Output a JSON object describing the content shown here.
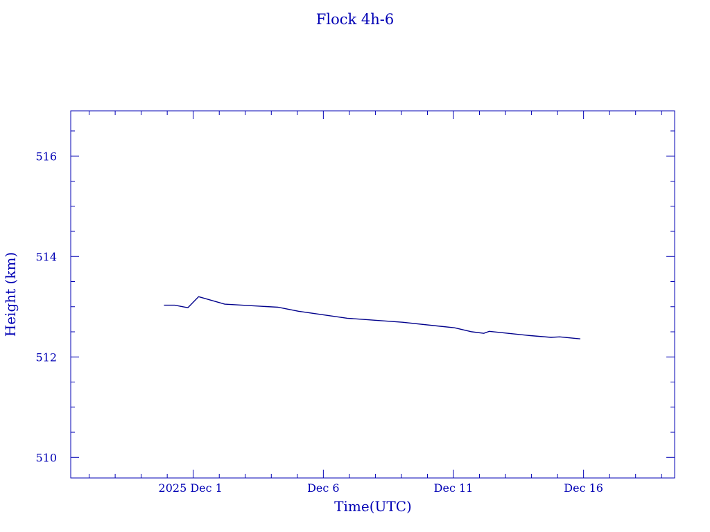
{
  "chart_data": {
    "type": "line",
    "title": "Flock 4h-6",
    "xlabel": "Time(UTC)",
    "ylabel": "Height (km)",
    "xlim": [
      "2025-11-26T07:00",
      "2025-12-19T12:00"
    ],
    "ylim": [
      509.59,
      516.9
    ],
    "x_ticks": [
      {
        "date": "2025-12-01T00:00",
        "label": "2025 Dec  1"
      },
      {
        "date": "2025-12-06T00:00",
        "label": "Dec  6"
      },
      {
        "date": "2025-12-11T00:00",
        "label": "Dec 11"
      },
      {
        "date": "2025-12-16T00:00",
        "label": "Dec 16"
      }
    ],
    "y_ticks": [
      510,
      512,
      514,
      516
    ],
    "y_minor_step": 0.5,
    "x_minor_step_days": 1,
    "grid": false,
    "colors": {
      "axes": "#0000b4",
      "line": "#00008b"
    },
    "series": [
      {
        "x": [
          "2025-11-29T21:00",
          "2025-11-30T07:00",
          "2025-11-30T19:00",
          "2025-12-01T05:00",
          "2025-12-02T05:00",
          "2025-12-04T06:00",
          "2025-12-05T01:00",
          "2025-12-06T22:00",
          "2025-12-09T01:00",
          "2025-12-11T01:00",
          "2025-12-11T17:00",
          "2025-12-12T04:00",
          "2025-12-12T09:00",
          "2025-12-13T20:00",
          "2025-12-14T18:00",
          "2025-12-15T02:00",
          "2025-12-15T21:00"
        ],
        "y": [
          513.03,
          513.03,
          512.98,
          513.2,
          513.05,
          512.99,
          512.91,
          512.77,
          512.69,
          512.58,
          512.5,
          512.47,
          512.51,
          512.43,
          512.39,
          512.4,
          512.36
        ]
      }
    ]
  }
}
